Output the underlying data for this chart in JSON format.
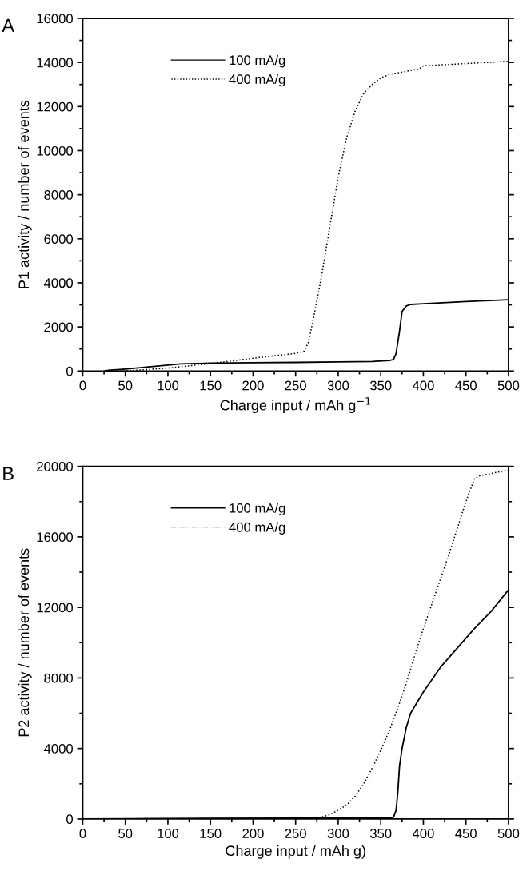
{
  "chart_data": [
    {
      "type": "line",
      "title": "A",
      "xlabel": "Charge input / mAh g$^{−1}$",
      "ylabel": "P1 activity / number of events",
      "legend": "upper left",
      "grid": false,
      "xlim": [
        0,
        500
      ],
      "ylim": [
        0,
        16000
      ],
      "xticks": [
        0,
        {
          "value": 25,
          "label": null
        },
        50,
        {
          "value": 75,
          "label": null
        },
        100,
        {
          "value": 125,
          "label": null
        },
        150,
        {
          "value": 175,
          "label": null
        },
        200,
        {
          "value": 225,
          "label": null
        },
        250,
        {
          "value": 275,
          "label": null
        },
        300,
        {
          "value": 325,
          "label": null
        },
        350,
        {
          "value": 375,
          "label": null
        },
        400,
        {
          "value": 425,
          "label": null
        },
        450,
        {
          "value": 475,
          "label": null
        },
        500
      ],
      "yticks": [
        0,
        {
          "value": 1000,
          "label": null
        },
        2000,
        {
          "value": 3000,
          "label": null
        },
        4000,
        {
          "value": 5000,
          "label": null
        },
        6000,
        {
          "value": 7000,
          "label": null
        },
        8000,
        {
          "value": 9000,
          "label": null
        },
        10000,
        {
          "value": 11000,
          "label": null
        },
        12000,
        {
          "value": 13000,
          "label": null
        },
        14000,
        {
          "value": 15000,
          "label": null
        },
        16000
      ],
      "series": [
        {
          "name": "100 mA/g",
          "color": "#000000",
          "line_style": "solid",
          "x": [
            25,
            30,
            50,
            75,
            100,
            115,
            150,
            200,
            250,
            300,
            340,
            360,
            365,
            368,
            372,
            375,
            380,
            385,
            400,
            450,
            500
          ],
          "values": [
            0,
            30,
            90,
            180,
            270,
            320,
            360,
            380,
            390,
            410,
            430,
            480,
            520,
            800,
            1800,
            2700,
            2950,
            3020,
            3050,
            3150,
            3230
          ]
        },
        {
          "name": "400 mA/g",
          "color": "#000000",
          "line_style": "dotted",
          "x": [
            40,
            60,
            100,
            150,
            200,
            250,
            260,
            265,
            270,
            280,
            290,
            300,
            310,
            320,
            330,
            340,
            350,
            360,
            380,
            395,
            400,
            450,
            500
          ],
          "values": [
            0,
            30,
            130,
            340,
            580,
            800,
            900,
            1300,
            2200,
            4200,
            6500,
            8800,
            10600,
            11800,
            12600,
            13000,
            13300,
            13450,
            13600,
            13700,
            13850,
            13950,
            14050
          ]
        }
      ]
    },
    {
      "type": "line",
      "title": "B",
      "xlabel": "Charge input / mAh g)",
      "ylabel": "P2 activity / number of events",
      "legend": "upper left",
      "grid": false,
      "xlim": [
        0,
        500
      ],
      "ylim": [
        0,
        20000
      ],
      "xticks": [
        0,
        {
          "value": 25,
          "label": null
        },
        50,
        {
          "value": 75,
          "label": null
        },
        100,
        {
          "value": 125,
          "label": null
        },
        150,
        {
          "value": 175,
          "label": null
        },
        200,
        {
          "value": 225,
          "label": null
        },
        250,
        {
          "value": 275,
          "label": null
        },
        300,
        {
          "value": 325,
          "label": null
        },
        350,
        {
          "value": 375,
          "label": null
        },
        400,
        {
          "value": 425,
          "label": null
        },
        450,
        {
          "value": 475,
          "label": null
        },
        500
      ],
      "yticks": [
        0,
        {
          "value": 2000,
          "label": null
        },
        4000,
        {
          "value": 6000,
          "label": null
        },
        8000,
        {
          "value": 10000,
          "label": null
        },
        12000,
        {
          "value": 14000,
          "label": null
        },
        16000,
        {
          "value": 18000,
          "label": null
        },
        20000
      ],
      "series": [
        {
          "name": "100 mA/g",
          "color": "#000000",
          "line_style": "solid",
          "x": [
            0,
            100,
            150,
            250,
            360,
            365,
            368,
            370,
            372,
            375,
            380,
            385,
            400,
            420,
            440,
            460,
            480,
            500
          ],
          "values": [
            0,
            20,
            40,
            50,
            50,
            100,
            500,
            1500,
            3000,
            4000,
            5200,
            6000,
            7200,
            8600,
            9700,
            10800,
            11800,
            13000
          ]
        },
        {
          "name": "400 mA/g",
          "color": "#000000",
          "line_style": "dotted",
          "x": [
            0,
            100,
            200,
            270,
            280,
            290,
            300,
            310,
            320,
            330,
            340,
            350,
            360,
            370,
            380,
            390,
            400,
            410,
            420,
            430,
            440,
            450,
            460,
            465,
            500
          ],
          "values": [
            0,
            20,
            30,
            50,
            100,
            250,
            500,
            800,
            1300,
            2000,
            2900,
            3900,
            5000,
            6300,
            7700,
            9300,
            10800,
            12200,
            13600,
            15000,
            16500,
            18000,
            19300,
            19450,
            19800
          ]
        }
      ]
    }
  ]
}
